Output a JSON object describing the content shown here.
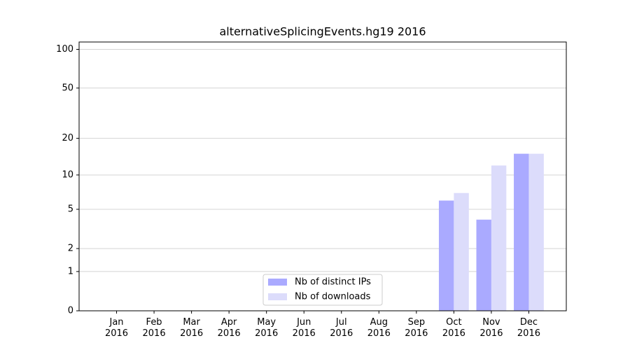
{
  "chart_data": {
    "type": "bar",
    "title": "alternativeSplicingEvents.hg19 2016",
    "categories": [
      "Jan\n2016",
      "Feb\n2016",
      "Mar\n2016",
      "Apr\n2016",
      "May\n2016",
      "Jun\n2016",
      "Jul\n2016",
      "Aug\n2016",
      "Sep\n2016",
      "Oct\n2016",
      "Nov\n2016",
      "Dec\n2016"
    ],
    "series": [
      {
        "name": "Nb of distinct IPs",
        "color": "#aaaaff",
        "values": [
          0,
          0,
          0,
          0,
          0,
          0,
          0,
          0,
          0,
          6,
          4,
          15
        ]
      },
      {
        "name": "Nb of downloads",
        "color": "#dcdcfb",
        "values": [
          0,
          0,
          0,
          0,
          0,
          0,
          0,
          0,
          0,
          7,
          12,
          15
        ]
      }
    ],
    "yscale": "log1p",
    "ylim": [
      0,
      114
    ],
    "yticks": [
      0,
      1,
      2,
      5,
      10,
      20,
      50,
      100
    ],
    "grid": true,
    "legend": "lower center"
  }
}
